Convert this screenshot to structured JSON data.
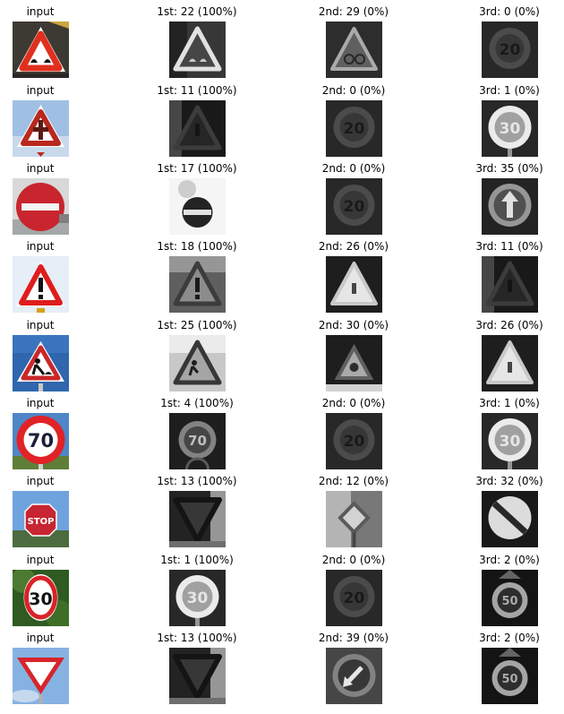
{
  "grid": {
    "rows": [
      {
        "cells": [
          {
            "title": "input",
            "kind": "in",
            "subject": "bumpy-road-sign"
          },
          {
            "title": "1st: 22 (100%)",
            "kind": "gray",
            "subject": "triangle-bumpy"
          },
          {
            "title": "2nd: 29 (0%)",
            "kind": "gray",
            "subject": "triangle-bicycle"
          },
          {
            "title": "3rd: 0 (0%)",
            "kind": "gray",
            "subject": "round-speed-20"
          }
        ]
      },
      {
        "cells": [
          {
            "title": "input",
            "kind": "in",
            "subject": "priority-intersection-sign"
          },
          {
            "title": "1st: 11 (100%)",
            "kind": "gray",
            "subject": "triangle-dark"
          },
          {
            "title": "2nd: 0 (0%)",
            "kind": "gray",
            "subject": "round-speed-20"
          },
          {
            "title": "3rd: 1 (0%)",
            "kind": "gray",
            "subject": "round-speed-30"
          }
        ]
      },
      {
        "cells": [
          {
            "title": "input",
            "kind": "in",
            "subject": "no-entry-sign"
          },
          {
            "title": "1st: 17 (100%)",
            "kind": "gray",
            "subject": "no-entry"
          },
          {
            "title": "2nd: 0 (0%)",
            "kind": "gray",
            "subject": "round-speed-20"
          },
          {
            "title": "3rd: 35 (0%)",
            "kind": "gray",
            "subject": "round-arrow"
          }
        ]
      },
      {
        "cells": [
          {
            "title": "input",
            "kind": "in",
            "subject": "general-caution-sign"
          },
          {
            "title": "1st: 18 (100%)",
            "kind": "gray",
            "subject": "triangle-exclaim"
          },
          {
            "title": "2nd: 26 (0%)",
            "kind": "gray",
            "subject": "triangle-bright"
          },
          {
            "title": "3rd: 11 (0%)",
            "kind": "gray",
            "subject": "triangle-dark"
          }
        ]
      },
      {
        "cells": [
          {
            "title": "input",
            "kind": "in",
            "subject": "road-work-sign"
          },
          {
            "title": "1st: 25 (100%)",
            "kind": "gray",
            "subject": "triangle-roadwork"
          },
          {
            "title": "2nd: 30 (0%)",
            "kind": "gray",
            "subject": "triangle-small"
          },
          {
            "title": "3rd: 26 (0%)",
            "kind": "gray",
            "subject": "triangle-bright"
          }
        ]
      },
      {
        "cells": [
          {
            "title": "input",
            "kind": "in",
            "subject": "speed-limit-70-sign"
          },
          {
            "title": "1st: 4 (100%)",
            "kind": "gray",
            "subject": "round-speed-70"
          },
          {
            "title": "2nd: 0 (0%)",
            "kind": "gray",
            "subject": "round-speed-20"
          },
          {
            "title": "3rd: 1 (0%)",
            "kind": "gray",
            "subject": "round-speed-30"
          }
        ]
      },
      {
        "cells": [
          {
            "title": "input",
            "kind": "in",
            "subject": "stop-sign"
          },
          {
            "title": "1st: 13 (100%)",
            "kind": "gray",
            "subject": "inverted-triangle"
          },
          {
            "title": "2nd: 12 (0%)",
            "kind": "gray",
            "subject": "diamond"
          },
          {
            "title": "3rd: 32 (0%)",
            "kind": "gray",
            "subject": "round-end-limit"
          }
        ]
      },
      {
        "cells": [
          {
            "title": "input",
            "kind": "in",
            "subject": "speed-limit-30-sign"
          },
          {
            "title": "1st: 1 (100%)",
            "kind": "gray",
            "subject": "round-speed-30"
          },
          {
            "title": "2nd: 0 (0%)",
            "kind": "gray",
            "subject": "round-speed-20"
          },
          {
            "title": "3rd: 2 (0%)",
            "kind": "gray",
            "subject": "round-speed-50"
          }
        ]
      },
      {
        "cells": [
          {
            "title": "input",
            "kind": "in",
            "subject": "yield-sign"
          },
          {
            "title": "1st: 13 (100%)",
            "kind": "gray",
            "subject": "inverted-triangle"
          },
          {
            "title": "2nd: 39 (0%)",
            "kind": "gray",
            "subject": "round-keep-left"
          },
          {
            "title": "3rd: 2 (0%)",
            "kind": "gray",
            "subject": "round-speed-50"
          }
        ]
      }
    ]
  }
}
